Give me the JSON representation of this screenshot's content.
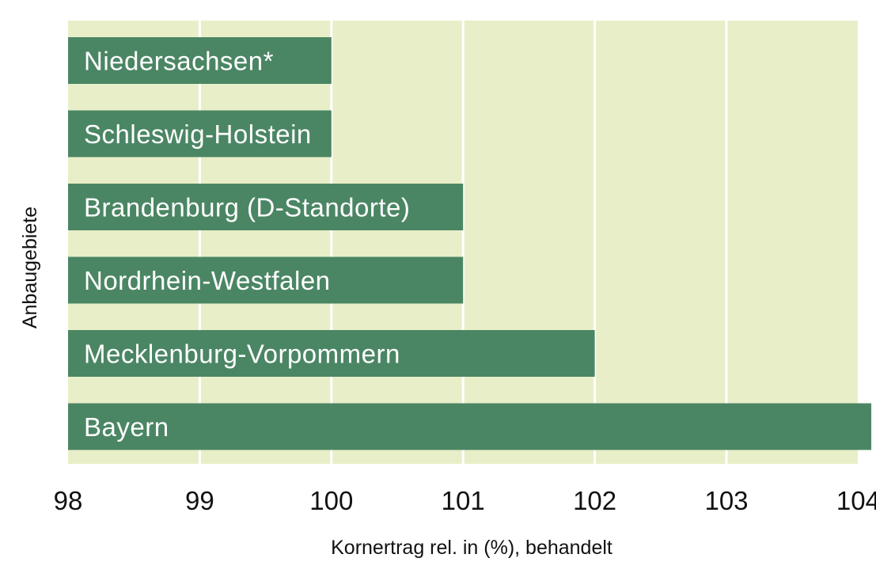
{
  "chart_data": {
    "type": "bar",
    "orientation": "horizontal",
    "categories": [
      "Niedersachsen*",
      "Schleswig-Holstein",
      "Brandenburg (D-Standorte)",
      "Nordrhein-Westfalen",
      "Mecklenburg-Vorpommern",
      "Bayern"
    ],
    "values": [
      100,
      100,
      101,
      101,
      102,
      104.1
    ],
    "xlim": [
      98,
      104.1
    ],
    "xticks": [
      "98",
      "99",
      "100",
      "101",
      "102",
      "103",
      "104"
    ],
    "xlabel": "Kornertrag rel. in (%), behandelt",
    "ylabel": "Anbaugebiete",
    "grid": true,
    "colors": {
      "bar": "#4b8664",
      "plot_background": "#e8efc8",
      "grid": "#ffffff"
    }
  }
}
